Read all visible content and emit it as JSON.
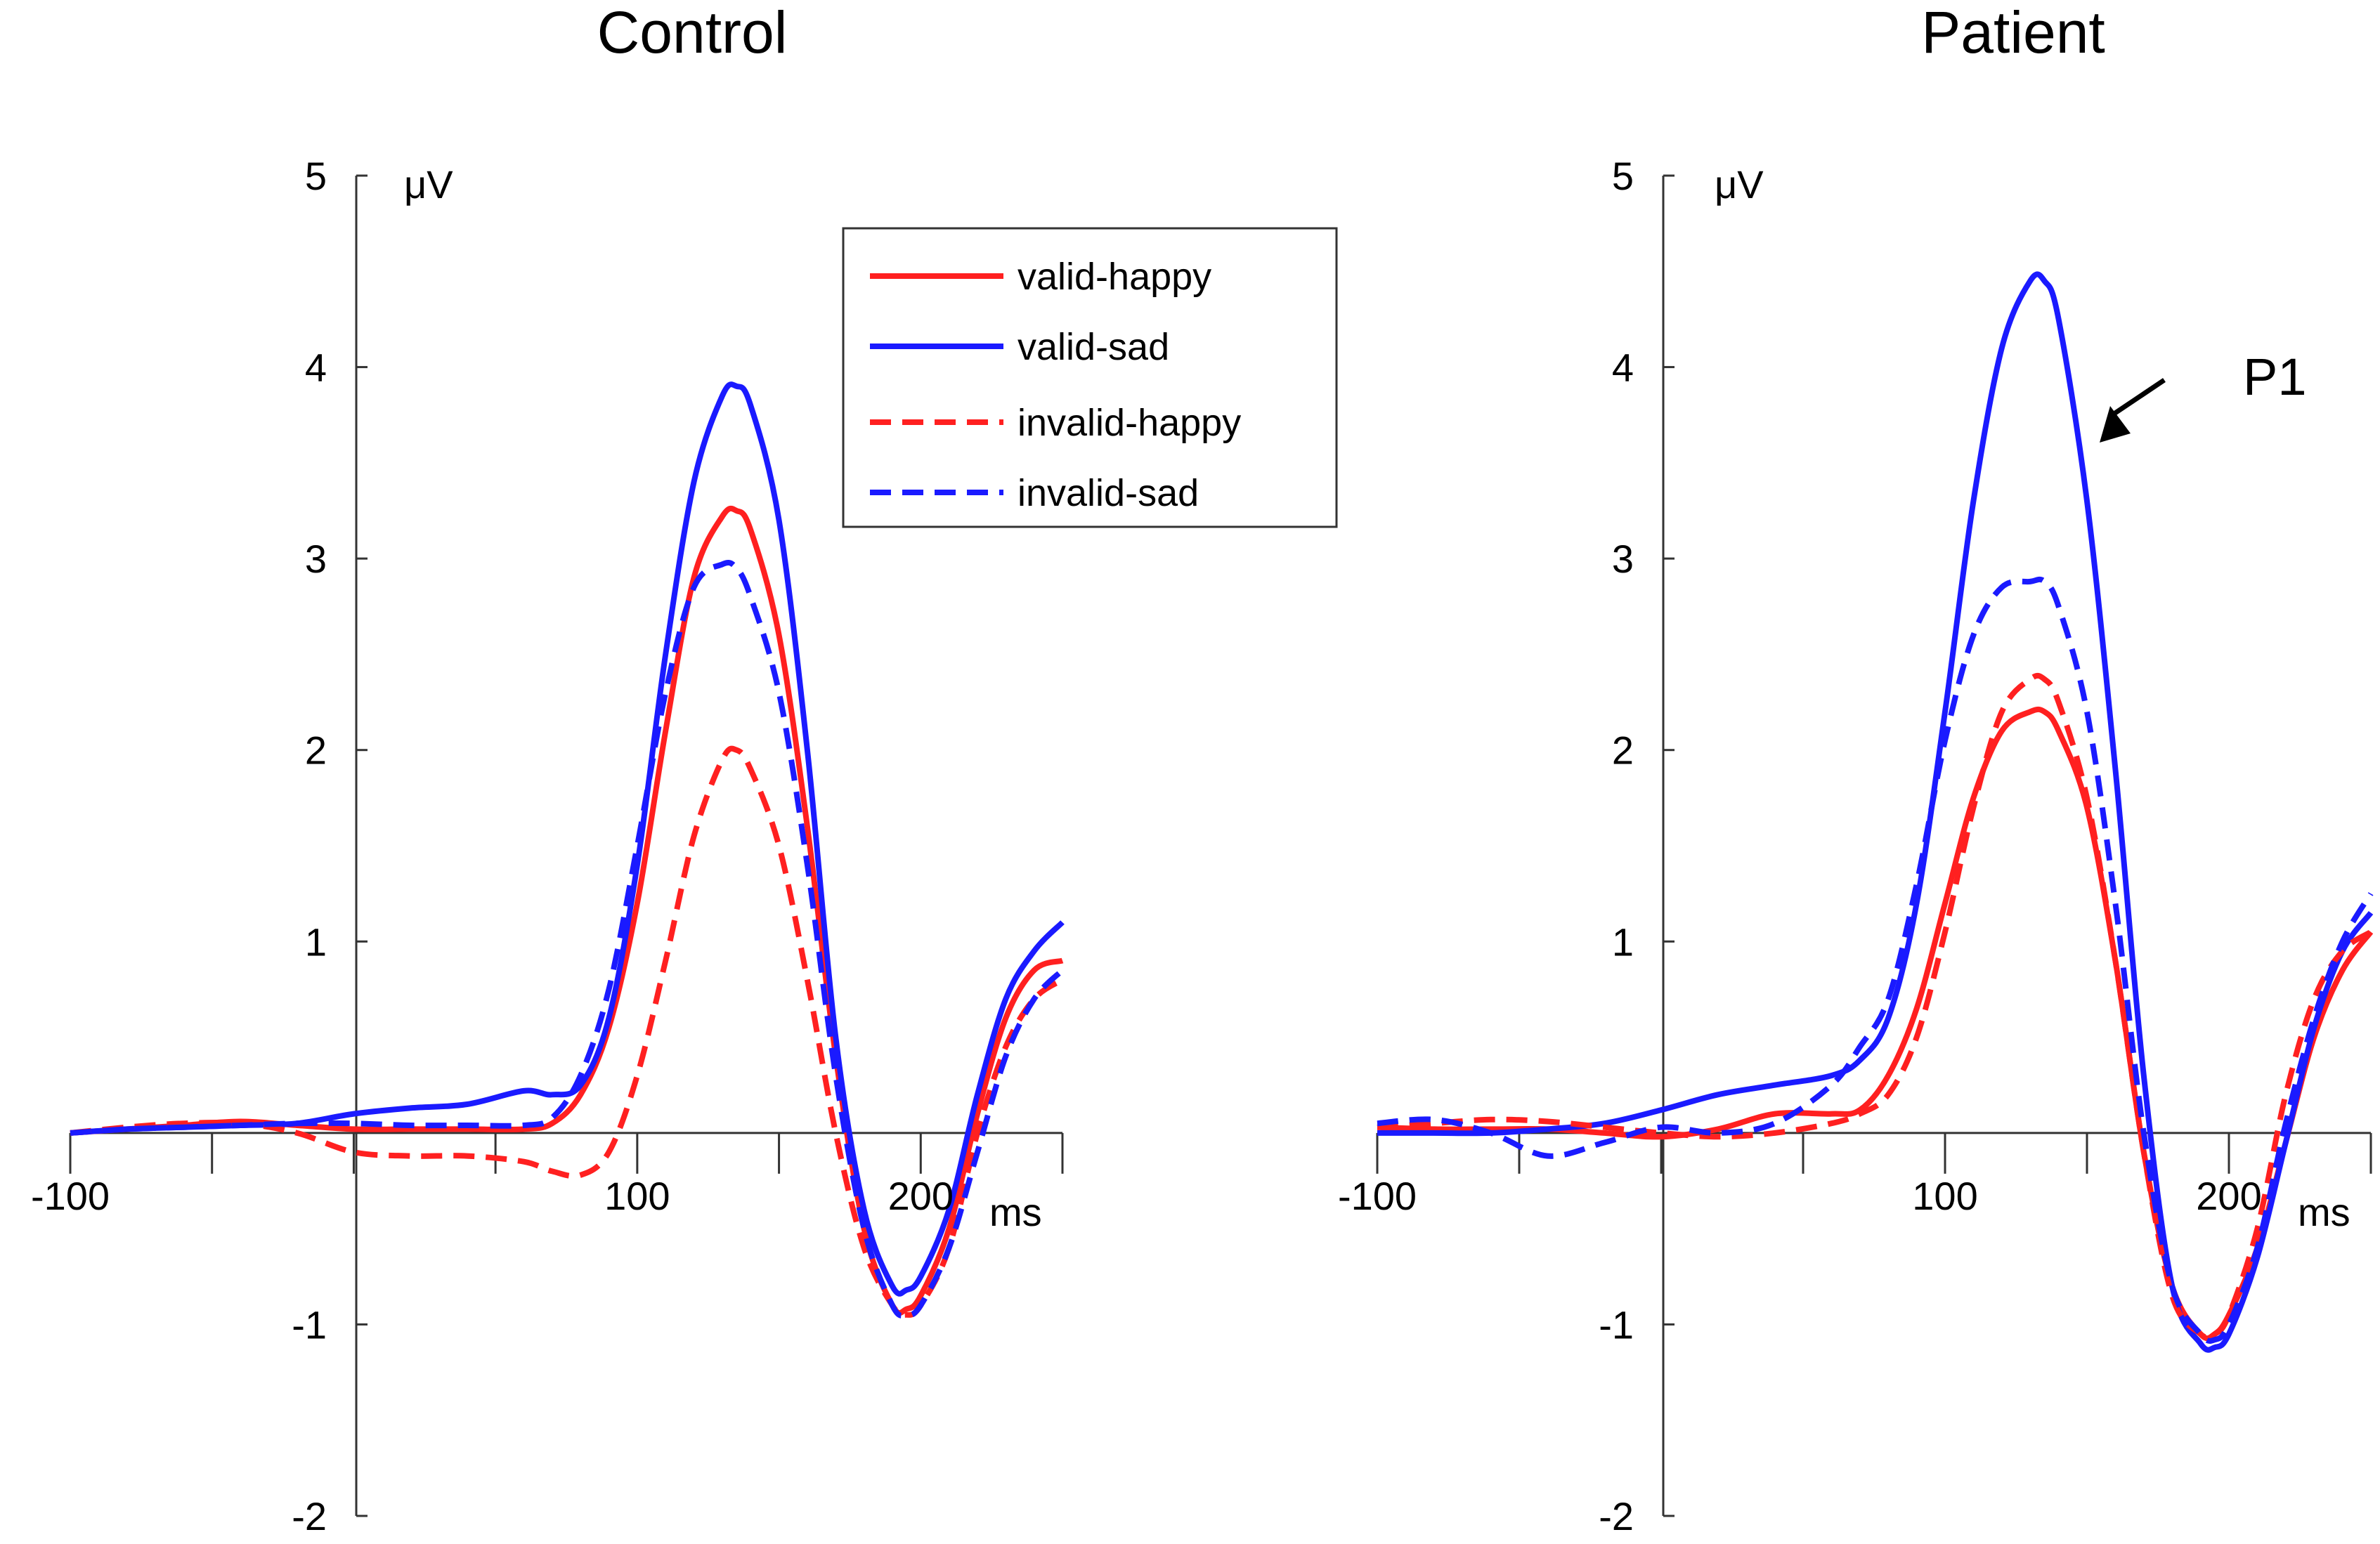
{
  "chart_data": [
    {
      "type": "line",
      "title": "Control",
      "xlabel": "ms",
      "ylabel": "μV",
      "xlim": [
        -100,
        250
      ],
      "ylim": [
        -2,
        5
      ],
      "x_tick_labels": [
        "-100",
        "100",
        "200"
      ],
      "y_tick_labels": [
        "5",
        "4",
        "3",
        "2",
        "1",
        "-1",
        "-2"
      ],
      "legend": [
        "valid-happy",
        "valid-sad",
        "invalid-happy",
        "invalid-sad"
      ],
      "series": [
        {
          "name": "valid-happy",
          "color": "#ff2020",
          "dash": "solid",
          "x": [
            -100,
            -80,
            -60,
            -40,
            -20,
            0,
            20,
            40,
            60,
            70,
            80,
            90,
            100,
            110,
            120,
            130,
            135,
            140,
            150,
            160,
            170,
            180,
            190,
            195,
            200,
            210,
            220,
            230,
            240,
            250
          ],
          "y": [
            0.0,
            0.02,
            0.04,
            0.06,
            0.04,
            0.02,
            0.02,
            0.02,
            0.02,
            0.05,
            0.2,
            0.55,
            1.2,
            2.1,
            2.9,
            3.22,
            3.25,
            3.15,
            2.6,
            1.6,
            0.4,
            -0.5,
            -0.9,
            -0.92,
            -0.85,
            -0.5,
            0.1,
            0.6,
            0.85,
            0.9
          ]
        },
        {
          "name": "valid-sad",
          "color": "#1a1aff",
          "dash": "solid",
          "x": [
            -100,
            -80,
            -60,
            -40,
            -20,
            0,
            20,
            40,
            60,
            70,
            80,
            90,
            100,
            110,
            120,
            130,
            135,
            140,
            150,
            160,
            170,
            180,
            190,
            195,
            200,
            210,
            220,
            230,
            240,
            250
          ],
          "y": [
            0.0,
            0.02,
            0.03,
            0.04,
            0.05,
            0.1,
            0.13,
            0.15,
            0.22,
            0.2,
            0.25,
            0.6,
            1.4,
            2.5,
            3.4,
            3.85,
            3.9,
            3.8,
            3.2,
            2.0,
            0.5,
            -0.4,
            -0.8,
            -0.82,
            -0.75,
            -0.4,
            0.2,
            0.7,
            0.95,
            1.1
          ]
        },
        {
          "name": "invalid-happy",
          "color": "#ff2020",
          "dash": "dashed",
          "x": [
            -100,
            -80,
            -60,
            -40,
            -20,
            0,
            20,
            40,
            60,
            70,
            80,
            90,
            100,
            110,
            120,
            130,
            135,
            140,
            150,
            160,
            170,
            180,
            190,
            195,
            200,
            210,
            220,
            230,
            240,
            250
          ],
          "y": [
            0.0,
            0.03,
            0.05,
            0.05,
            0.0,
            -0.1,
            -0.12,
            -0.12,
            -0.15,
            -0.2,
            -0.22,
            -0.1,
            0.3,
            0.9,
            1.55,
            1.95,
            2.0,
            1.9,
            1.5,
            0.8,
            0.0,
            -0.6,
            -0.9,
            -0.95,
            -0.9,
            -0.6,
            0.0,
            0.45,
            0.7,
            0.8
          ]
        },
        {
          "name": "invalid-sad",
          "color": "#1a1aff",
          "dash": "dashed",
          "x": [
            -100,
            -80,
            -60,
            -40,
            -20,
            0,
            20,
            40,
            60,
            70,
            80,
            90,
            100,
            110,
            120,
            130,
            135,
            140,
            150,
            160,
            170,
            180,
            190,
            195,
            200,
            210,
            220,
            230,
            240,
            250
          ],
          "y": [
            0.0,
            0.02,
            0.03,
            0.04,
            0.05,
            0.05,
            0.04,
            0.04,
            0.04,
            0.08,
            0.3,
            0.75,
            1.5,
            2.3,
            2.85,
            2.97,
            2.95,
            2.8,
            2.3,
            1.4,
            0.3,
            -0.5,
            -0.9,
            -0.95,
            -0.9,
            -0.6,
            -0.1,
            0.4,
            0.7,
            0.85
          ]
        }
      ]
    },
    {
      "type": "line",
      "title": "Patient",
      "xlabel": "ms",
      "ylabel": "μV",
      "xlim": [
        -100,
        250
      ],
      "ylim": [
        -2,
        5
      ],
      "x_tick_labels": [
        "-100",
        "100",
        "200"
      ],
      "y_tick_labels": [
        "5",
        "4",
        "3",
        "2",
        "1",
        "-1",
        "-2"
      ],
      "annotation": "P1",
      "series": [
        {
          "name": "valid-happy",
          "color": "#ff2020",
          "dash": "solid",
          "x": [
            -100,
            -80,
            -60,
            -40,
            -20,
            0,
            20,
            40,
            60,
            70,
            80,
            90,
            100,
            110,
            120,
            130,
            135,
            140,
            150,
            160,
            170,
            180,
            190,
            195,
            200,
            210,
            220,
            230,
            240,
            250
          ],
          "y": [
            0.03,
            0.02,
            0.02,
            0.02,
            0.0,
            -0.02,
            0.02,
            0.1,
            0.1,
            0.12,
            0.3,
            0.65,
            1.2,
            1.75,
            2.1,
            2.2,
            2.2,
            2.1,
            1.7,
            0.9,
            -0.1,
            -0.8,
            -1.05,
            -1.05,
            -0.95,
            -0.6,
            -0.05,
            0.5,
            0.85,
            1.05
          ]
        },
        {
          "name": "valid-sad",
          "color": "#1a1aff",
          "dash": "solid",
          "x": [
            -100,
            -80,
            -60,
            -40,
            -20,
            0,
            20,
            40,
            60,
            70,
            80,
            90,
            100,
            110,
            120,
            130,
            135,
            140,
            150,
            160,
            170,
            180,
            190,
            195,
            200,
            210,
            220,
            230,
            240,
            250
          ],
          "y": [
            0.0,
            0.0,
            0.0,
            0.02,
            0.05,
            0.12,
            0.2,
            0.25,
            0.3,
            0.38,
            0.6,
            1.2,
            2.2,
            3.3,
            4.1,
            4.45,
            4.45,
            4.25,
            3.3,
            1.9,
            0.3,
            -0.8,
            -1.1,
            -1.12,
            -1.05,
            -0.65,
            -0.05,
            0.55,
            0.95,
            1.15
          ]
        },
        {
          "name": "invalid-happy",
          "color": "#ff2020",
          "dash": "dashed",
          "x": [
            -100,
            -80,
            -60,
            -40,
            -20,
            0,
            20,
            40,
            60,
            70,
            80,
            90,
            100,
            110,
            120,
            130,
            135,
            140,
            150,
            160,
            170,
            180,
            190,
            195,
            200,
            210,
            220,
            230,
            240,
            250
          ],
          "y": [
            0.03,
            0.05,
            0.07,
            0.06,
            0.03,
            0.0,
            -0.02,
            0.0,
            0.05,
            0.1,
            0.2,
            0.5,
            1.05,
            1.7,
            2.2,
            2.37,
            2.37,
            2.25,
            1.75,
            0.9,
            -0.1,
            -0.85,
            -1.05,
            -1.05,
            -0.95,
            -0.5,
            0.2,
            0.7,
            0.95,
            1.05
          ]
        },
        {
          "name": "invalid-sad",
          "color": "#1a1aff",
          "dash": "dashed",
          "x": [
            -100,
            -80,
            -60,
            -40,
            -20,
            0,
            20,
            40,
            60,
            70,
            80,
            90,
            100,
            110,
            120,
            130,
            135,
            140,
            150,
            160,
            170,
            180,
            190,
            195,
            200,
            210,
            220,
            230,
            240,
            250
          ],
          "y": [
            0.05,
            0.07,
            0.0,
            -0.12,
            -0.05,
            0.03,
            0.0,
            0.05,
            0.25,
            0.45,
            0.7,
            1.3,
            2.05,
            2.6,
            2.85,
            2.88,
            2.88,
            2.75,
            2.2,
            1.2,
            0.0,
            -0.8,
            -1.05,
            -1.08,
            -1.0,
            -0.6,
            0.05,
            0.6,
            1.0,
            1.25
          ]
        }
      ]
    }
  ],
  "legend_colors": {
    "red": "#ff2020",
    "blue": "#1a1aff"
  }
}
